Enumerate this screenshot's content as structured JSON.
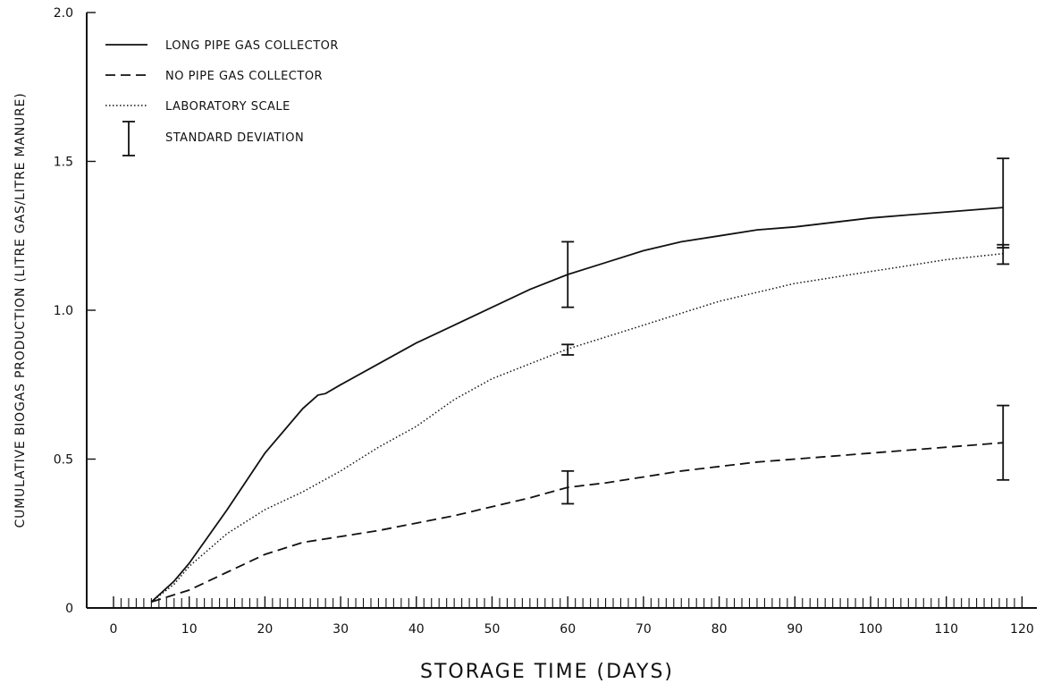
{
  "chart_data": {
    "type": "line",
    "xlabel": "STORAGE TIME (DAYS)",
    "ylabel": "CUMULATIVE BIOGAS PRODUCTION (LITRE GAS/LITRE MANURE)",
    "xlim": [
      0,
      120
    ],
    "ylim": [
      0,
      2.0
    ],
    "x_ticks": [
      0,
      10,
      20,
      30,
      40,
      50,
      60,
      70,
      80,
      90,
      100,
      110,
      120
    ],
    "y_ticks": [
      0,
      0.5,
      1.0,
      1.5,
      2.0
    ],
    "x_tick_labels": [
      "0",
      "10",
      "20",
      "30",
      "40",
      "50",
      "60",
      "70",
      "80",
      "90",
      "100",
      "110",
      "120"
    ],
    "y_tick_labels": [
      "0",
      "0.5",
      "1.0",
      "1.5",
      "2.0"
    ],
    "grid": false,
    "legend_position": "top-left",
    "series": [
      {
        "name": "LONG PIPE GAS COLLECTOR",
        "style": "solid",
        "x": [
          5,
          8,
          10,
          15,
          20,
          25,
          27,
          28,
          30,
          35,
          40,
          45,
          50,
          55,
          60,
          65,
          70,
          75,
          80,
          85,
          90,
          95,
          100,
          105,
          110,
          117.5
        ],
        "y": [
          0.02,
          0.09,
          0.15,
          0.33,
          0.52,
          0.67,
          0.715,
          0.72,
          0.75,
          0.82,
          0.89,
          0.95,
          1.01,
          1.07,
          1.12,
          1.16,
          1.2,
          1.23,
          1.25,
          1.27,
          1.28,
          1.295,
          1.31,
          1.32,
          1.33,
          1.345
        ]
      },
      {
        "name": "NO PIPE GAS COLLECTOR",
        "style": "dashed",
        "x": [
          5,
          10,
          15,
          20,
          25,
          30,
          35,
          40,
          45,
          50,
          55,
          60,
          65,
          70,
          75,
          80,
          85,
          90,
          95,
          100,
          105,
          110,
          117.5
        ],
        "y": [
          0.02,
          0.06,
          0.12,
          0.18,
          0.22,
          0.24,
          0.26,
          0.285,
          0.31,
          0.34,
          0.37,
          0.405,
          0.42,
          0.44,
          0.46,
          0.475,
          0.49,
          0.5,
          0.51,
          0.52,
          0.53,
          0.54,
          0.555
        ]
      },
      {
        "name": "LABORATORY SCALE",
        "style": "dotted",
        "x": [
          5,
          8,
          10,
          15,
          20,
          25,
          30,
          35,
          40,
          45,
          50,
          55,
          60,
          65,
          70,
          75,
          80,
          85,
          90,
          95,
          100,
          105,
          110,
          117.5
        ],
        "y": [
          0.02,
          0.08,
          0.14,
          0.25,
          0.33,
          0.39,
          0.46,
          0.54,
          0.61,
          0.7,
          0.77,
          0.82,
          0.87,
          0.91,
          0.95,
          0.99,
          1.03,
          1.06,
          1.09,
          1.11,
          1.13,
          1.15,
          1.17,
          1.19
        ]
      }
    ],
    "error_bars": [
      {
        "series": "LONG PIPE GAS COLLECTOR",
        "x": 60,
        "low": 1.01,
        "high": 1.23
      },
      {
        "series": "LONG PIPE GAS COLLECTOR",
        "x": 117.5,
        "low": 1.21,
        "high": 1.51
      },
      {
        "series": "LABORATORY SCALE",
        "x": 60,
        "low": 0.85,
        "high": 0.885
      },
      {
        "series": "LABORATORY SCALE",
        "x": 117.5,
        "low": 1.155,
        "high": 1.22
      },
      {
        "series": "NO PIPE GAS COLLECTOR",
        "x": 60,
        "low": 0.35,
        "high": 0.46
      },
      {
        "series": "NO PIPE GAS COLLECTOR",
        "x": 117.5,
        "low": 0.43,
        "high": 0.68
      }
    ],
    "legend": [
      {
        "label": "LONG PIPE GAS COLLECTOR",
        "style": "solid"
      },
      {
        "label": "NO PIPE GAS COLLECTOR",
        "style": "dashed"
      },
      {
        "label": "LABORATORY SCALE",
        "style": "dotted"
      },
      {
        "label": "STANDARD DEVIATION",
        "style": "errorbar"
      }
    ]
  }
}
